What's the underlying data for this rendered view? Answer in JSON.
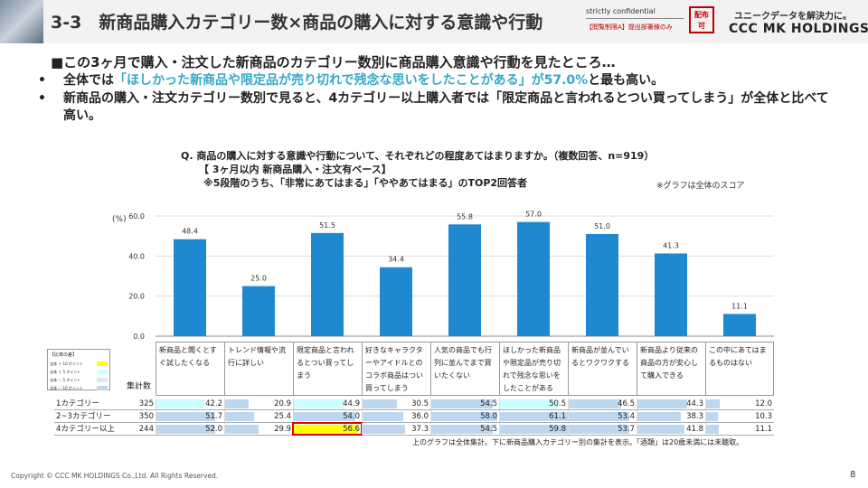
{
  "header": {
    "title": "3-3　新商品購入カテゴリー数×商品の購入に対する意識や行動",
    "confidential": "strictly confidential",
    "restriction": "【閲覧制限A】提出部署様のみ",
    "stamp_line1": "配布",
    "stamp_line2": "可",
    "tagline": "ユニークデータを解決力に。",
    "logo": "CCC MK HOLDINGS"
  },
  "heading": "■この3ヶ月で購入・注文した新商品のカテゴリー数別に商品購入意識や行動を見たところ…",
  "bullets": [
    {
      "pre": "全体では",
      "highlight": "「ほしかった新商品や限定品が売り切れで残念な思いをしたことがある」が57.0%",
      "post": "と最も高い。"
    },
    {
      "pre": "新商品の購入・注文カテゴリー数別で見ると、4カテゴリー以上購入者では「限定商品と言われるとつい買ってしまう」が全体と比べて高い。",
      "highlight": "",
      "post": ""
    }
  ],
  "question": {
    "line1": "Q. 商品の購入に対する意識や行動について、それぞれどの程度あてはまりますか。（複数回答、n=919）",
    "line2": "【 3ヶ月以内 新商品購入・注文有ベース】",
    "line3": "※5段階のうち、「非常にあてはまる」「ややあてはまる」のTOP2回答者"
  },
  "note": "※グラフは全体のスコア",
  "chart_data": {
    "type": "bar",
    "ylabel": "(%)",
    "ylim": [
      0,
      60
    ],
    "yticks": [
      "0.0",
      "20.0",
      "40.0",
      "60.0"
    ],
    "grid": true,
    "color": "#1e88d0",
    "categories": [
      "新商品と聞くとすぐ試したくなる",
      "トレンド情報や流行に詳しい",
      "限定商品と言われるとつい買ってしまう",
      "好きなキャラクターやアイドルとのコラボ商品はつい買ってしまう",
      "人気の商品でも行列に並んでまで買いたくない",
      "ほしかった新商品や限定品が売り切れで残念な思いをしたことがある",
      "新商品が並んでいるとワクワクする",
      "新商品より従来の商品の方が安心して購入できる",
      "この中にあてはまるものはない"
    ],
    "values": [
      48.4,
      25.0,
      51.5,
      34.4,
      55.8,
      57.0,
      51.0,
      41.3,
      11.1
    ],
    "value_labels": [
      "48.4",
      "25.0",
      "51.5",
      "34.4",
      "55.8",
      "57.0",
      "51.0",
      "41.3",
      "11.1"
    ]
  },
  "legend": {
    "title": "【比率の差】",
    "rows": [
      {
        "label": "全体 ＋ 10 ポイント",
        "color": "#ffff00"
      },
      {
        "label": "全体 ＋ 5 ポイント",
        "color": "#ccffff"
      },
      {
        "label": "全体 － 5 ポイント",
        "color": "#dde8f4"
      },
      {
        "label": "全体 － 10 ポイント",
        "color": "#bdd7ee"
      }
    ]
  },
  "table": {
    "count_label": "集計数",
    "rows": [
      {
        "name": "1カテゴリー",
        "n": "325",
        "cells": [
          {
            "v": 42.2,
            "t": "42.2",
            "h": "cyan"
          },
          {
            "v": 20.9,
            "t": "20.9",
            "h": ""
          },
          {
            "v": 44.9,
            "t": "44.9",
            "h": "cyan"
          },
          {
            "v": 30.5,
            "t": "30.5",
            "h": ""
          },
          {
            "v": 54.5,
            "t": "54.5",
            "h": ""
          },
          {
            "v": 50.5,
            "t": "50.5",
            "h": "cyan"
          },
          {
            "v": 46.5,
            "t": "46.5",
            "h": ""
          },
          {
            "v": 44.3,
            "t": "44.3",
            "h": ""
          },
          {
            "v": 12.0,
            "t": "12.0",
            "h": ""
          }
        ]
      },
      {
        "name": "2~3カテゴリー",
        "n": "350",
        "cells": [
          {
            "v": 51.7,
            "t": "51.7",
            "h": ""
          },
          {
            "v": 25.4,
            "t": "25.4",
            "h": ""
          },
          {
            "v": 54.0,
            "t": "54.0",
            "h": ""
          },
          {
            "v": 36.0,
            "t": "36.0",
            "h": ""
          },
          {
            "v": 58.0,
            "t": "58.0",
            "h": ""
          },
          {
            "v": 61.1,
            "t": "61.1",
            "h": ""
          },
          {
            "v": 53.4,
            "t": "53.4",
            "h": ""
          },
          {
            "v": 38.3,
            "t": "38.3",
            "h": ""
          },
          {
            "v": 10.3,
            "t": "10.3",
            "h": ""
          }
        ]
      },
      {
        "name": "4カテゴリー以上",
        "n": "244",
        "cells": [
          {
            "v": 52.0,
            "t": "52.0",
            "h": ""
          },
          {
            "v": 29.9,
            "t": "29.9",
            "h": ""
          },
          {
            "v": 56.6,
            "t": "56.6",
            "h": "yellow",
            "boxed": true
          },
          {
            "v": 37.3,
            "t": "37.3",
            "h": ""
          },
          {
            "v": 54.5,
            "t": "54.5",
            "h": ""
          },
          {
            "v": 59.8,
            "t": "59.8",
            "h": ""
          },
          {
            "v": 53.7,
            "t": "53.7",
            "h": ""
          },
          {
            "v": 41.8,
            "t": "41.8",
            "h": ""
          },
          {
            "v": 11.1,
            "t": "11.1",
            "h": ""
          }
        ]
      }
    ]
  },
  "footnote": "上のグラフは全体集計。下に新商品購入カテゴリー別の集計を表示。「酒類」は20歳未満には未聴取。",
  "copyright": "Copyright © CCC MK HOLDINGS Co.,Ltd. All Rights Reserved.",
  "page_number": "8"
}
